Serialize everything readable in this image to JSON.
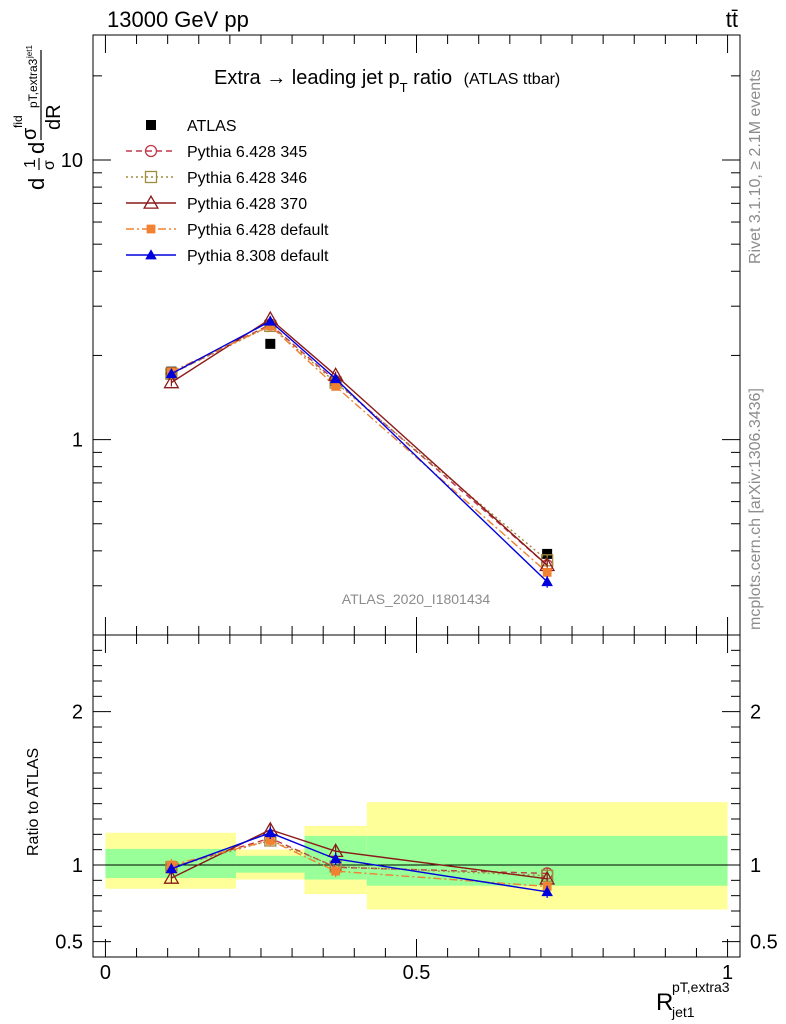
{
  "header": {
    "left": "13000 GeV pp",
    "right": "tt̄"
  },
  "side_text": {
    "top": "Rivet 3.1.10, ≥ 2.1M events",
    "bottom": "mcplots.cern.ch [arXiv:1306.3436]"
  },
  "chart_data": [
    {
      "type": "line",
      "title_main": "Extra → leading jet p",
      "title_sub": "T",
      "title_tail": " ratio",
      "title_small": "(ATLAS ttbar)",
      "ylabel": "1/σ dσfid/dR pT,extra3 jet1",
      "ylabel_parts": {
        "d1": "d",
        "one": "1",
        "sigma": "σ",
        "d2": "d",
        "sig2": "σ",
        "fid": "fid",
        "dR": "dR",
        "sup": "pT,extra3",
        "sub": "jet1"
      },
      "watermark": "ATLAS_2020_I1801434",
      "y_scale": "log",
      "ylim": [
        0.2,
        28
      ],
      "xlim": [
        -0.02,
        1.02
      ],
      "y_ticks": [
        {
          "v": 1,
          "label": "1"
        },
        {
          "v": 10,
          "label": "10"
        }
      ],
      "legend_position": "top-left",
      "x": [
        0.106,
        0.265,
        0.37,
        0.71
      ],
      "series": [
        {
          "name": "ATLAS",
          "style": "data",
          "color": "#000000",
          "values": [
            1.75,
            2.2,
            1.62,
            0.39
          ],
          "errors": [
            0.04,
            0.05,
            0.04,
            0.015
          ]
        },
        {
          "name": "Pythia 6.428 345",
          "style": "dashed",
          "marker": "circle-open",
          "color": "#c0394b",
          "values": [
            1.72,
            2.58,
            1.62,
            0.355
          ],
          "errors": [
            0.05,
            0.07,
            0.05,
            0.015
          ]
        },
        {
          "name": "Pythia 6.428 346",
          "style": "dotted",
          "marker": "square-open",
          "color": "#a08c3c",
          "values": [
            1.72,
            2.55,
            1.6,
            0.37
          ],
          "errors": [
            0.05,
            0.07,
            0.05,
            0.015
          ]
        },
        {
          "name": "Pythia 6.428 370",
          "style": "solid",
          "marker": "triangle-open",
          "color": "#8b1a1a",
          "values": [
            1.6,
            2.7,
            1.7,
            0.355
          ],
          "errors": [
            0.05,
            0.07,
            0.05,
            0.015
          ]
        },
        {
          "name": "Pythia 6.428 default",
          "style": "dashdot",
          "marker": "square-filled",
          "color": "#f08232",
          "values": [
            1.75,
            2.55,
            1.55,
            0.335
          ],
          "errors": [
            0.05,
            0.07,
            0.05,
            0.015
          ]
        },
        {
          "name": "Pythia 8.308 default",
          "style": "solid",
          "marker": "triangle-filled",
          "color": "#0000dd",
          "values": [
            1.72,
            2.65,
            1.65,
            0.31
          ],
          "errors": [
            0.05,
            0.07,
            0.05,
            0.015
          ]
        }
      ]
    },
    {
      "type": "line",
      "ylabel": "Ratio to ATLAS",
      "xlabel_main": "R",
      "xlabel_sup": "pT,extra3",
      "xlabel_sub": "jet1",
      "xlim": [
        -0.02,
        1.02
      ],
      "ylim": [
        0.4,
        2.5
      ],
      "y_ticks": [
        {
          "v": 0.5,
          "label": "0.5"
        },
        {
          "v": 1,
          "label": "1"
        },
        {
          "v": 2,
          "label": "2"
        }
      ],
      "x_ticks": [
        {
          "v": 0,
          "label": "0"
        },
        {
          "v": 0.5,
          "label": "0.5"
        },
        {
          "v": 1,
          "label": "1"
        }
      ],
      "bins": [
        {
          "lo": 0.0,
          "hi": 0.21,
          "green": [
            0.915,
            1.105
          ],
          "yellow": [
            0.845,
            1.21
          ]
        },
        {
          "lo": 0.21,
          "hi": 0.32,
          "green": [
            0.95,
            1.06
          ],
          "yellow": [
            0.905,
            1.1
          ]
        },
        {
          "lo": 0.32,
          "hi": 0.42,
          "green": [
            0.905,
            1.19
          ],
          "yellow": [
            0.81,
            1.255
          ]
        },
        {
          "lo": 0.42,
          "hi": 1.0,
          "green": [
            0.865,
            1.19
          ],
          "yellow": [
            0.71,
            1.41
          ]
        }
      ],
      "x": [
        0.106,
        0.265,
        0.37,
        0.71
      ],
      "series": [
        {
          "name": "Pythia 6.428 345",
          "style": "dashed",
          "marker": "circle-open",
          "color": "#c0394b",
          "values": [
            0.985,
            1.175,
            0.985,
            0.945
          ],
          "errors": [
            0.04,
            0.04,
            0.04,
            0.035
          ]
        },
        {
          "name": "Pythia 6.428 346",
          "style": "dotted",
          "marker": "square-open",
          "color": "#a08c3c",
          "values": [
            0.985,
            1.16,
            0.99,
            0.93
          ],
          "errors": [
            0.04,
            0.04,
            0.04,
            0.035
          ]
        },
        {
          "name": "Pythia 6.428 370",
          "style": "solid",
          "marker": "triangle-open",
          "color": "#8b1a1a",
          "values": [
            0.915,
            1.23,
            1.09,
            0.91
          ],
          "errors": [
            0.035,
            0.04,
            0.04,
            0.035
          ]
        },
        {
          "name": "Pythia 6.428 default",
          "style": "dashdot",
          "marker": "square-filled",
          "color": "#f08232",
          "values": [
            1.0,
            1.16,
            0.96,
            0.86
          ],
          "errors": [
            0.04,
            0.04,
            0.04,
            0.035
          ]
        },
        {
          "name": "Pythia 8.308 default",
          "style": "solid",
          "marker": "triangle-filled",
          "color": "#0000dd",
          "values": [
            0.975,
            1.21,
            1.04,
            0.825
          ],
          "errors": [
            0.035,
            0.04,
            0.04,
            0.04
          ]
        }
      ]
    }
  ]
}
